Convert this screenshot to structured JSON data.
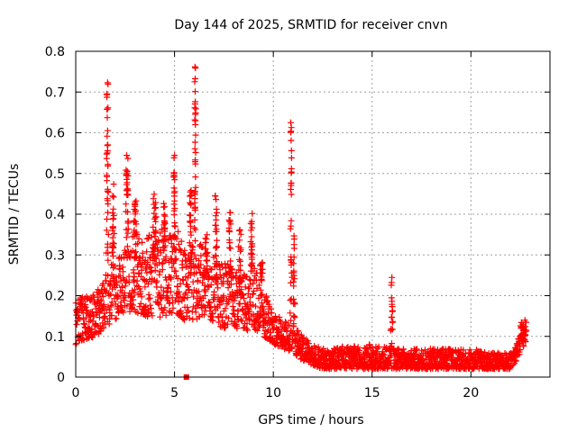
{
  "chart_data": {
    "type": "scatter",
    "title": "Day 144 of 2025, SRMTID for receiver cnvn",
    "xlabel": "GPS time / hours",
    "ylabel": "SRMTID / TECUs",
    "xlim": [
      0,
      24
    ],
    "ylim": [
      0,
      0.8
    ],
    "xticks": [
      0,
      5,
      10,
      15,
      20
    ],
    "yticks": [
      0,
      0.1,
      0.2,
      0.3,
      0.4,
      0.5,
      0.6,
      0.7,
      0.8
    ],
    "xtick_labels": [
      "0",
      "5",
      "10",
      "15",
      "20"
    ],
    "ytick_labels": [
      "0",
      "0.1",
      "0.2",
      "0.3",
      "0.4",
      "0.5",
      "0.6",
      "0.7",
      "0.8"
    ],
    "grid": true,
    "marker": "plus",
    "color": "#ff0000",
    "outlier": {
      "x": 5.6,
      "y": 0.0,
      "marker": "square"
    },
    "series": [
      {
        "name": "SRMTID",
        "envelope": {
          "x": [
            0.0,
            0.5,
            1.0,
            1.5,
            2.0,
            2.5,
            3.0,
            3.5,
            4.0,
            4.5,
            5.0,
            5.5,
            6.0,
            6.5,
            7.0,
            7.5,
            8.0,
            8.5,
            9.0,
            9.5,
            10.0,
            10.5,
            11.0,
            11.5,
            12.0,
            12.5,
            13.0,
            14.0,
            15.0,
            16.0,
            17.0,
            18.0,
            19.0,
            20.0,
            21.0,
            21.5,
            22.0,
            22.3,
            22.7
          ],
          "low": [
            0.08,
            0.09,
            0.1,
            0.12,
            0.14,
            0.16,
            0.16,
            0.15,
            0.14,
            0.15,
            0.16,
            0.14,
            0.14,
            0.15,
            0.13,
            0.12,
            0.12,
            0.11,
            0.12,
            0.1,
            0.08,
            0.07,
            0.06,
            0.04,
            0.03,
            0.02,
            0.02,
            0.02,
            0.02,
            0.02,
            0.02,
            0.02,
            0.02,
            0.02,
            0.02,
            0.02,
            0.02,
            0.04,
            0.08
          ],
          "high": [
            0.19,
            0.2,
            0.21,
            0.24,
            0.3,
            0.33,
            0.36,
            0.34,
            0.38,
            0.36,
            0.38,
            0.32,
            0.34,
            0.32,
            0.3,
            0.28,
            0.27,
            0.26,
            0.28,
            0.22,
            0.16,
            0.14,
            0.13,
            0.1,
            0.08,
            0.07,
            0.07,
            0.08,
            0.08,
            0.07,
            0.07,
            0.07,
            0.07,
            0.07,
            0.06,
            0.06,
            0.06,
            0.08,
            0.14
          ]
        },
        "spikes": [
          {
            "x": 1.6,
            "peak": 0.74,
            "width": 0.12
          },
          {
            "x": 1.9,
            "peak": 0.5,
            "width": 0.15
          },
          {
            "x": 2.6,
            "peak": 0.56,
            "width": 0.2
          },
          {
            "x": 3.0,
            "peak": 0.44,
            "width": 0.2
          },
          {
            "x": 4.0,
            "peak": 0.45,
            "width": 0.3
          },
          {
            "x": 4.5,
            "peak": 0.43,
            "width": 0.2
          },
          {
            "x": 5.0,
            "peak": 0.55,
            "width": 0.15
          },
          {
            "x": 5.8,
            "peak": 0.47,
            "width": 0.15
          },
          {
            "x": 6.05,
            "peak": 0.77,
            "width": 0.1
          },
          {
            "x": 6.6,
            "peak": 0.36,
            "width": 0.2
          },
          {
            "x": 7.1,
            "peak": 0.45,
            "width": 0.15
          },
          {
            "x": 7.8,
            "peak": 0.41,
            "width": 0.15
          },
          {
            "x": 8.3,
            "peak": 0.37,
            "width": 0.2
          },
          {
            "x": 8.9,
            "peak": 0.42,
            "width": 0.15
          },
          {
            "x": 9.4,
            "peak": 0.29,
            "width": 0.2
          },
          {
            "x": 10.9,
            "peak": 0.63,
            "width": 0.08
          },
          {
            "x": 11.05,
            "peak": 0.35,
            "width": 0.1
          },
          {
            "x": 16.0,
            "peak": 0.25,
            "width": 0.12
          },
          {
            "x": 22.6,
            "peak": 0.15,
            "width": 0.3
          }
        ],
        "point_count": 2300,
        "x_range": [
          0.0,
          22.8
        ]
      }
    ]
  }
}
